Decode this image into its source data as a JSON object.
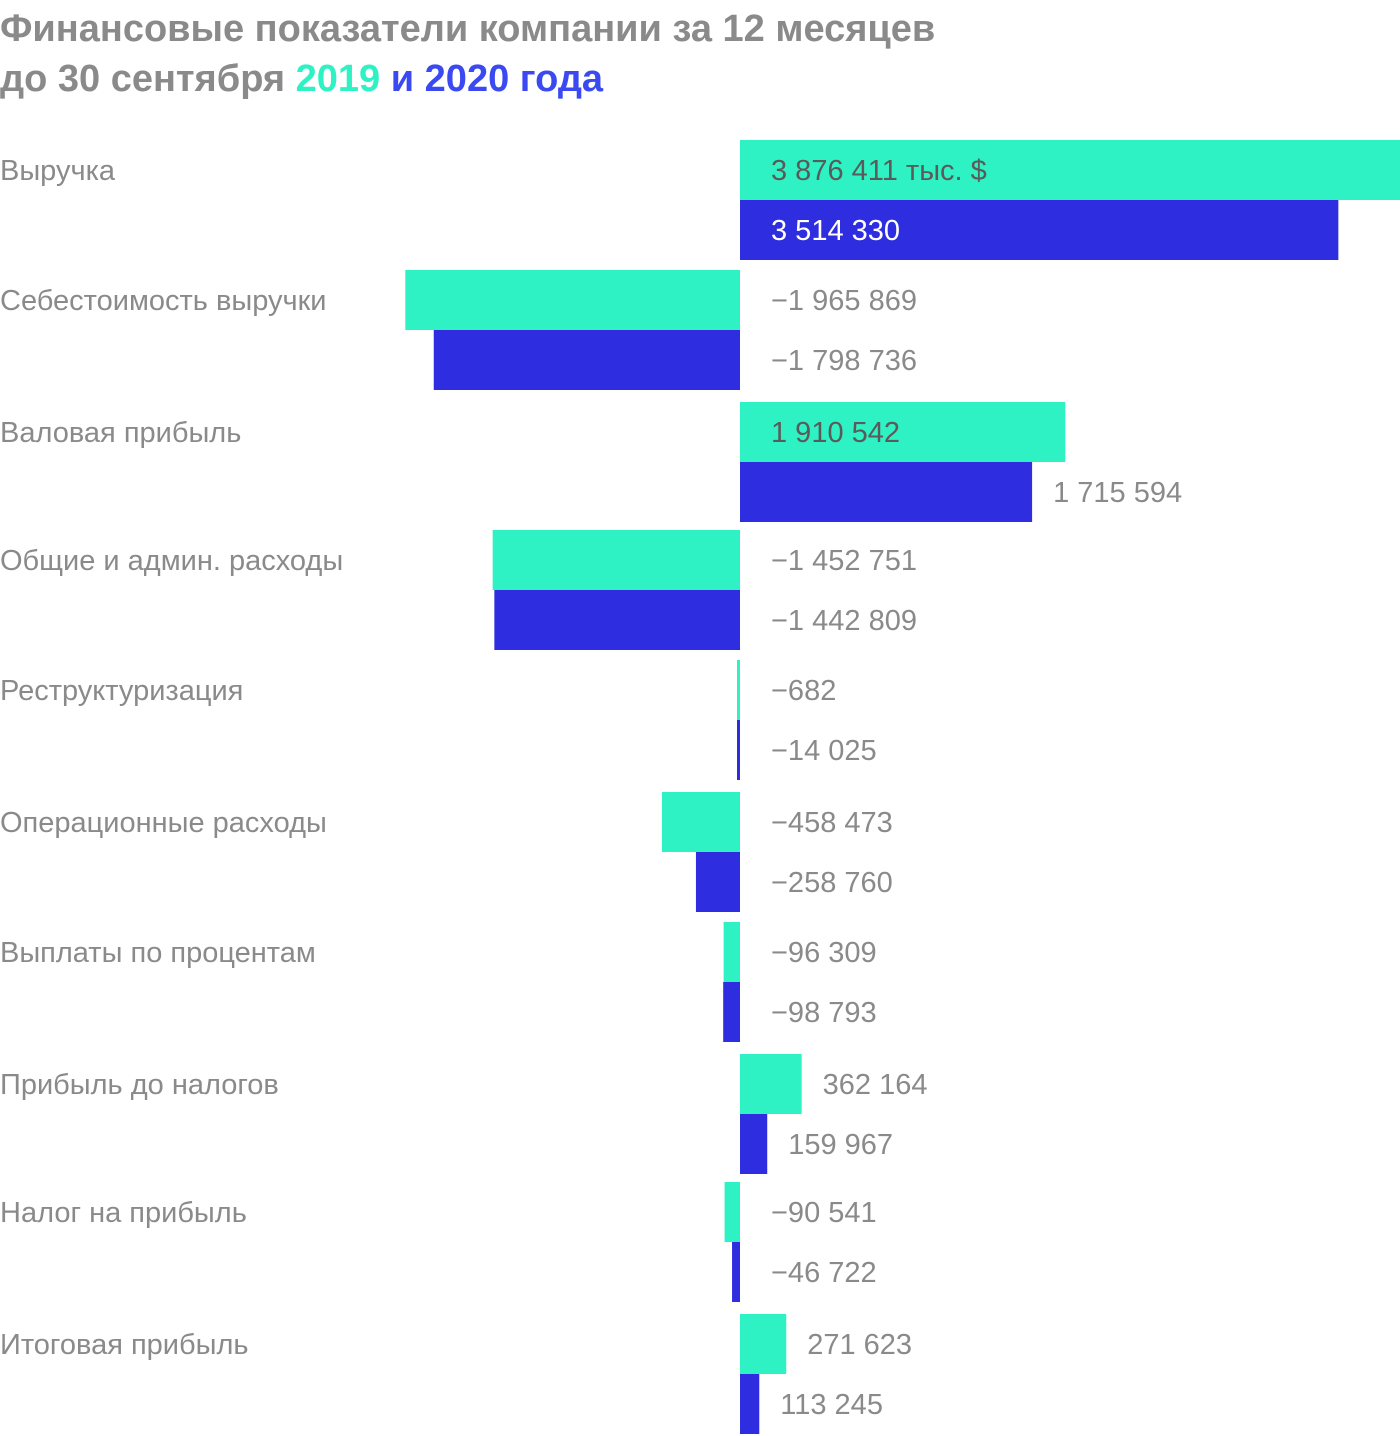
{
  "title": {
    "line1": "Финансовые показатели компании за 12 месяцев",
    "line2_prefix": "до 30 сентября ",
    "year1": "2019",
    "conjunction": " и ",
    "year2": "2020",
    "line2_suffix": " года"
  },
  "colors": {
    "series_2019": "#2ff2c4",
    "series_2020": "#2e2ee0",
    "label_gray": "#8a8a8a",
    "label_on_teal": "#5a5a5a",
    "label_on_blue": "#ffffff"
  },
  "chart_data": {
    "type": "bar",
    "orientation": "horizontal",
    "unit": "тыс. $",
    "legend": "in title",
    "grid": false,
    "categories": [
      "Выручка",
      "Себестоимость выручки",
      "Валовая прибыль",
      "Общие и админ. расходы",
      "Реструктуризация",
      "Операционные расходы",
      "Выплаты по процентам",
      "Прибыль до налогов",
      "Налог на прибыль",
      "Итоговая прибыль"
    ],
    "series": [
      {
        "name": "2019",
        "values": [
          3876411,
          -1965869,
          1910542,
          -1452751,
          -682,
          -458473,
          -96309,
          362164,
          -90541,
          271623
        ],
        "labels": [
          "3 876 411 тыс. $",
          "−1 965 869",
          "1 910 542",
          "−1 452 751",
          "−682",
          "−458 473",
          "−96 309",
          "362 164",
          "−90 541",
          "271 623"
        ]
      },
      {
        "name": "2020",
        "values": [
          3514330,
          -1798736,
          1715594,
          -1442809,
          -14025,
          -258760,
          -98793,
          159967,
          -46722,
          113245
        ],
        "labels": [
          "3 514 330",
          "−1 798 736",
          "1 715 594",
          "−1 442 809",
          "−14 025",
          "−258 760",
          "−98 793",
          "159 967",
          "−46 722",
          "113 245"
        ]
      }
    ]
  }
}
